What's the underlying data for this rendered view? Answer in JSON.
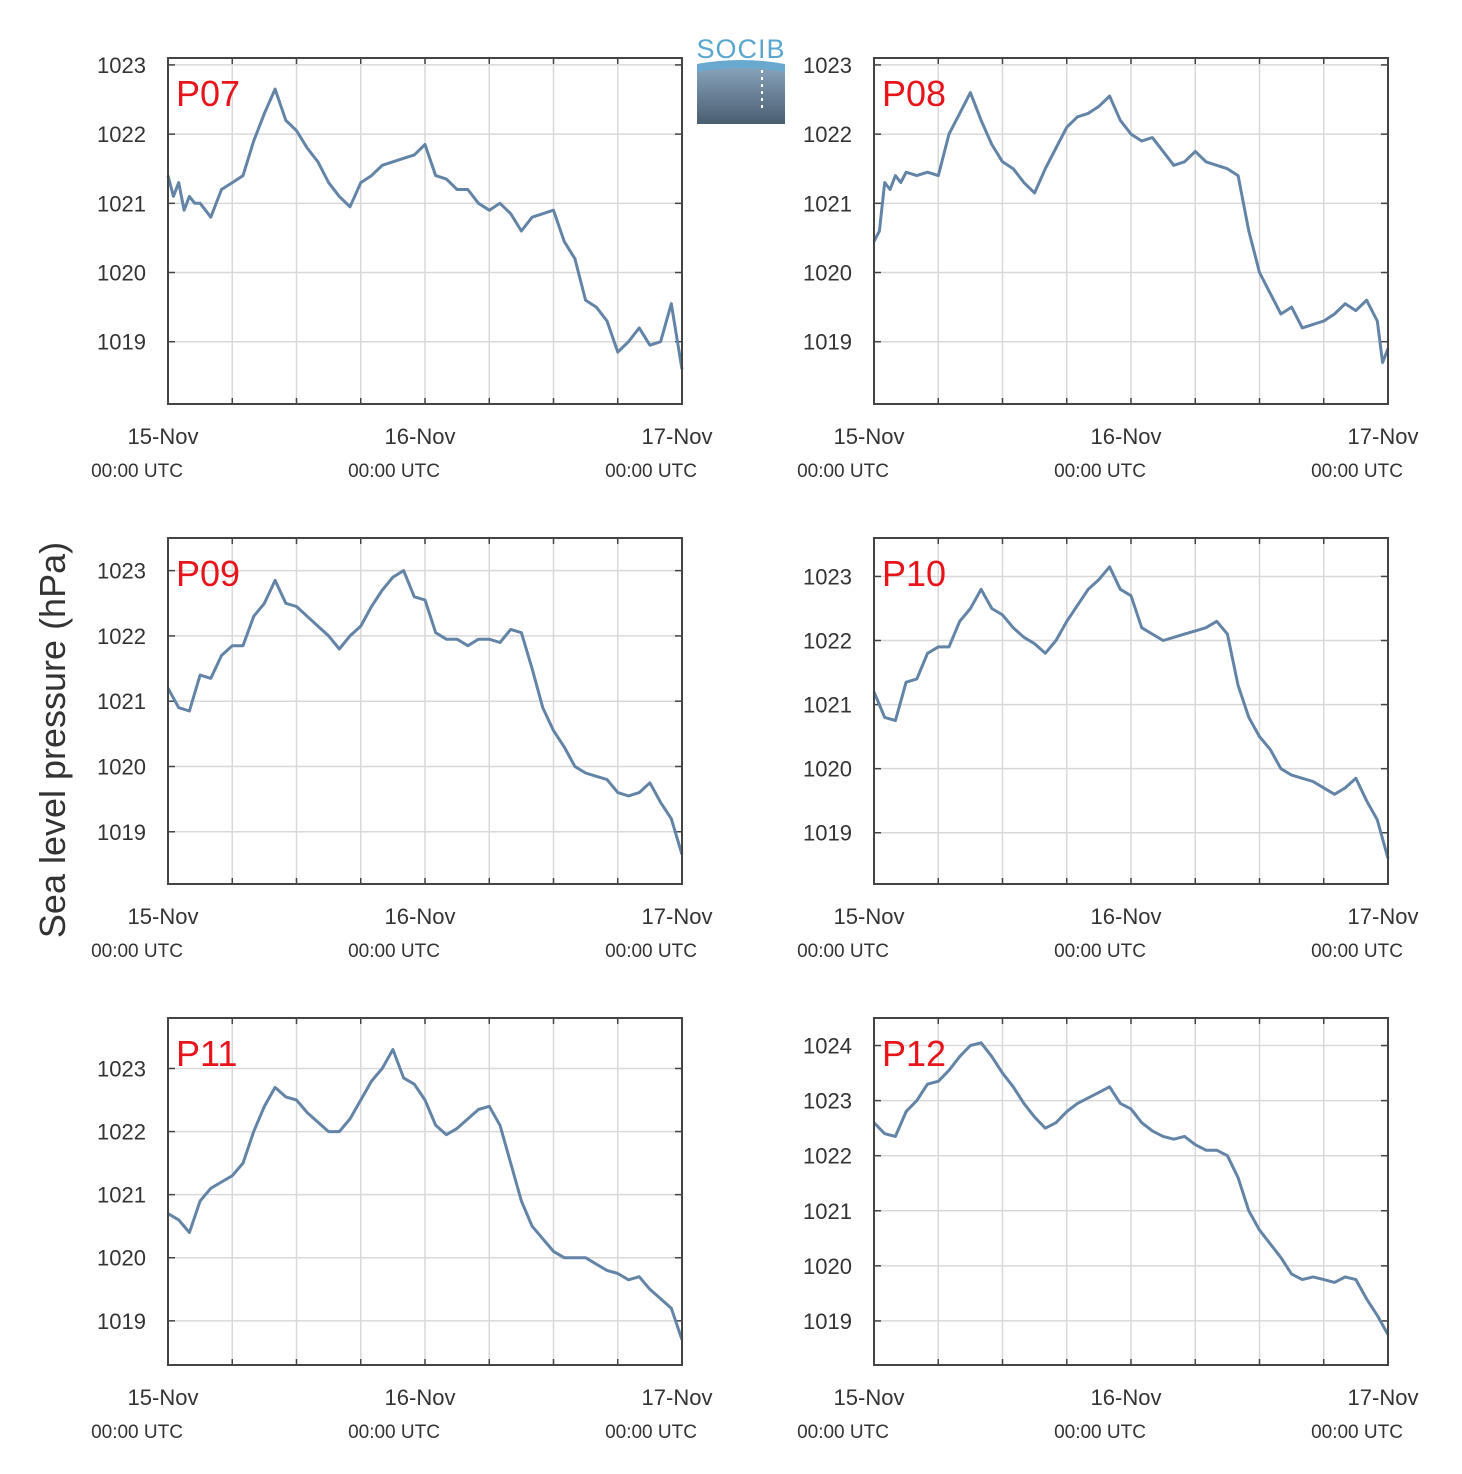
{
  "figure": {
    "ylabel": "Sea level pressure (hPa)",
    "logo_text": "SOCIB",
    "colors": {
      "line": "#6384a6",
      "station_label": "#e8141c",
      "grid": "#d9d9d9",
      "axes": "#444444"
    }
  },
  "chart_data": [
    {
      "type": "line",
      "station": "P07",
      "x_ticks": [
        {
          "date": "15-Nov",
          "time": "00:00 UTC"
        },
        {
          "date": "16-Nov",
          "time": "00:00 UTC"
        },
        {
          "date": "17-Nov",
          "time": "00:00 UTC"
        }
      ],
      "xlim_hours": [
        0,
        48
      ],
      "x_unit": "hours since 15-Nov 00:00 UTC",
      "ylim": [
        1018.1,
        1023.1
      ],
      "yticks": [
        1019,
        1020,
        1021,
        1022,
        1023
      ],
      "grid": true,
      "series": [
        {
          "x": [
            0,
            0.5,
            1,
            1.5,
            2,
            2.5,
            3,
            3.5,
            4,
            5,
            6,
            7,
            8,
            9,
            10,
            11,
            12,
            13,
            14,
            15,
            16,
            17,
            18,
            19,
            20,
            21,
            22,
            23,
            24,
            25,
            26,
            27,
            28,
            29,
            30,
            31,
            32,
            33,
            34,
            35,
            36,
            37,
            38,
            39,
            40,
            41,
            42,
            43,
            44,
            45,
            46,
            47,
            48
          ],
          "y": [
            1021.4,
            1021.1,
            1021.3,
            1020.9,
            1021.1,
            1021.0,
            1021.0,
            1020.9,
            1020.8,
            1021.2,
            1021.3,
            1021.4,
            1021.9,
            1022.3,
            1022.65,
            1022.2,
            1022.05,
            1021.8,
            1021.6,
            1021.3,
            1021.1,
            1020.95,
            1021.3,
            1021.4,
            1021.55,
            1021.6,
            1021.65,
            1021.7,
            1021.85,
            1021.4,
            1021.35,
            1021.2,
            1021.2,
            1021.0,
            1020.9,
            1021.0,
            1020.85,
            1020.6,
            1020.8,
            1020.85,
            1020.9,
            1020.45,
            1020.2,
            1019.6,
            1019.5,
            1019.3,
            1018.85,
            1019.0,
            1019.2,
            1018.95,
            1019.0,
            1019.55,
            1018.6
          ]
        }
      ]
    },
    {
      "type": "line",
      "station": "P08",
      "x_ticks": [
        {
          "date": "15-Nov",
          "time": "00:00 UTC"
        },
        {
          "date": "16-Nov",
          "time": "00:00 UTC"
        },
        {
          "date": "17-Nov",
          "time": "00:00 UTC"
        }
      ],
      "xlim_hours": [
        0,
        48
      ],
      "x_unit": "hours since 15-Nov 00:00 UTC",
      "ylim": [
        1018.1,
        1023.1
      ],
      "yticks": [
        1019,
        1020,
        1021,
        1022,
        1023
      ],
      "grid": true,
      "series": [
        {
          "x": [
            0,
            0.5,
            1,
            1.5,
            2,
            2.5,
            3,
            4,
            5,
            6,
            7,
            8,
            9,
            10,
            11,
            12,
            13,
            14,
            15,
            16,
            17,
            18,
            19,
            20,
            21,
            22,
            23,
            24,
            25,
            26,
            27,
            28,
            29,
            30,
            31,
            32,
            33,
            34,
            35,
            36,
            37,
            38,
            39,
            40,
            41,
            42,
            43,
            44,
            45,
            46,
            47,
            47.5,
            48
          ],
          "y": [
            1020.45,
            1020.6,
            1021.3,
            1021.2,
            1021.4,
            1021.3,
            1021.45,
            1021.4,
            1021.45,
            1021.4,
            1022.0,
            1022.3,
            1022.6,
            1022.2,
            1021.85,
            1021.6,
            1021.5,
            1021.3,
            1021.15,
            1021.5,
            1021.8,
            1022.1,
            1022.25,
            1022.3,
            1022.4,
            1022.55,
            1022.2,
            1022.0,
            1021.9,
            1021.95,
            1021.75,
            1021.55,
            1021.6,
            1021.75,
            1021.6,
            1021.55,
            1021.5,
            1021.4,
            1020.6,
            1020.0,
            1019.7,
            1019.4,
            1019.5,
            1019.2,
            1019.25,
            1019.3,
            1019.4,
            1019.55,
            1019.45,
            1019.6,
            1019.3,
            1018.7,
            1018.9
          ]
        }
      ]
    },
    {
      "type": "line",
      "station": "P09",
      "x_ticks": [
        {
          "date": "15-Nov",
          "time": "00:00 UTC"
        },
        {
          "date": "16-Nov",
          "time": "00:00 UTC"
        },
        {
          "date": "17-Nov",
          "time": "00:00 UTC"
        }
      ],
      "xlim_hours": [
        0,
        48
      ],
      "x_unit": "hours since 15-Nov 00:00 UTC",
      "ylim": [
        1018.2,
        1023.5
      ],
      "yticks": [
        1019,
        1020,
        1021,
        1022,
        1023
      ],
      "grid": true,
      "series": [
        {
          "x": [
            0,
            1,
            2,
            3,
            4,
            5,
            6,
            7,
            8,
            9,
            10,
            11,
            12,
            13,
            14,
            15,
            16,
            17,
            18,
            19,
            20,
            21,
            22,
            23,
            24,
            25,
            26,
            27,
            28,
            29,
            30,
            31,
            32,
            33,
            34,
            35,
            36,
            37,
            38,
            39,
            40,
            41,
            42,
            43,
            44,
            45,
            46,
            47,
            48
          ],
          "y": [
            1021.2,
            1020.9,
            1020.85,
            1021.4,
            1021.35,
            1021.7,
            1021.85,
            1021.85,
            1022.3,
            1022.5,
            1022.85,
            1022.5,
            1022.45,
            1022.3,
            1022.15,
            1022.0,
            1021.8,
            1022.0,
            1022.15,
            1022.45,
            1022.7,
            1022.9,
            1023.0,
            1022.6,
            1022.55,
            1022.05,
            1021.95,
            1021.95,
            1021.85,
            1021.95,
            1021.95,
            1021.9,
            1022.1,
            1022.05,
            1021.5,
            1020.9,
            1020.55,
            1020.3,
            1020.0,
            1019.9,
            1019.85,
            1019.8,
            1019.6,
            1019.55,
            1019.6,
            1019.75,
            1019.45,
            1019.2,
            1018.65
          ]
        }
      ]
    },
    {
      "type": "line",
      "station": "P10",
      "x_ticks": [
        {
          "date": "15-Nov",
          "time": "00:00 UTC"
        },
        {
          "date": "16-Nov",
          "time": "00:00 UTC"
        },
        {
          "date": "17-Nov",
          "time": "00:00 UTC"
        }
      ],
      "xlim_hours": [
        0,
        48
      ],
      "x_unit": "hours since 15-Nov 00:00 UTC",
      "ylim": [
        1018.2,
        1023.6
      ],
      "yticks": [
        1019,
        1020,
        1021,
        1022,
        1023
      ],
      "grid": true,
      "series": [
        {
          "x": [
            0,
            1,
            2,
            3,
            4,
            5,
            6,
            7,
            8,
            9,
            10,
            11,
            12,
            13,
            14,
            15,
            16,
            17,
            18,
            19,
            20,
            21,
            22,
            23,
            24,
            25,
            26,
            27,
            28,
            29,
            30,
            31,
            32,
            33,
            34,
            35,
            36,
            37,
            38,
            39,
            40,
            41,
            42,
            43,
            44,
            45,
            46,
            47,
            48
          ],
          "y": [
            1021.2,
            1020.8,
            1020.75,
            1021.35,
            1021.4,
            1021.8,
            1021.9,
            1021.9,
            1022.3,
            1022.5,
            1022.8,
            1022.5,
            1022.4,
            1022.2,
            1022.05,
            1021.95,
            1021.8,
            1022.0,
            1022.3,
            1022.55,
            1022.8,
            1022.95,
            1023.15,
            1022.8,
            1022.7,
            1022.2,
            1022.1,
            1022.0,
            1022.05,
            1022.1,
            1022.15,
            1022.2,
            1022.3,
            1022.1,
            1021.3,
            1020.8,
            1020.5,
            1020.3,
            1020.0,
            1019.9,
            1019.85,
            1019.8,
            1019.7,
            1019.6,
            1019.7,
            1019.85,
            1019.5,
            1019.2,
            1018.6
          ]
        }
      ]
    },
    {
      "type": "line",
      "station": "P11",
      "x_ticks": [
        {
          "date": "15-Nov",
          "time": "00:00 UTC"
        },
        {
          "date": "16-Nov",
          "time": "00:00 UTC"
        },
        {
          "date": "17-Nov",
          "time": "00:00 UTC"
        }
      ],
      "xlim_hours": [
        0,
        48
      ],
      "x_unit": "hours since 15-Nov 00:00 UTC",
      "ylim": [
        1018.3,
        1023.8
      ],
      "yticks": [
        1019,
        1020,
        1021,
        1022,
        1023
      ],
      "grid": true,
      "series": [
        {
          "x": [
            0,
            1,
            2,
            3,
            4,
            5,
            6,
            7,
            8,
            9,
            10,
            11,
            12,
            13,
            14,
            15,
            16,
            17,
            18,
            19,
            20,
            21,
            22,
            23,
            24,
            25,
            26,
            27,
            28,
            29,
            30,
            31,
            32,
            33,
            34,
            35,
            36,
            37,
            38,
            39,
            40,
            41,
            42,
            43,
            44,
            45,
            46,
            47,
            48
          ],
          "y": [
            1020.7,
            1020.6,
            1020.4,
            1020.9,
            1021.1,
            1021.2,
            1021.3,
            1021.5,
            1022.0,
            1022.4,
            1022.7,
            1022.55,
            1022.5,
            1022.3,
            1022.15,
            1022.0,
            1022.0,
            1022.2,
            1022.5,
            1022.8,
            1023.0,
            1023.3,
            1022.85,
            1022.75,
            1022.5,
            1022.1,
            1021.95,
            1022.05,
            1022.2,
            1022.35,
            1022.4,
            1022.1,
            1021.5,
            1020.9,
            1020.5,
            1020.3,
            1020.1,
            1020.0,
            1020.0,
            1020.0,
            1019.9,
            1019.8,
            1019.75,
            1019.65,
            1019.7,
            1019.5,
            1019.35,
            1019.2,
            1018.7
          ]
        }
      ]
    },
    {
      "type": "line",
      "station": "P12",
      "x_ticks": [
        {
          "date": "15-Nov",
          "time": "00:00 UTC"
        },
        {
          "date": "16-Nov",
          "time": "00:00 UTC"
        },
        {
          "date": "17-Nov",
          "time": "00:00 UTC"
        }
      ],
      "xlim_hours": [
        0,
        48
      ],
      "x_unit": "hours since 15-Nov 00:00 UTC",
      "ylim": [
        1018.2,
        1024.5
      ],
      "yticks": [
        1019,
        1020,
        1021,
        1022,
        1023,
        1024
      ],
      "grid": true,
      "series": [
        {
          "x": [
            0,
            1,
            2,
            3,
            4,
            5,
            6,
            7,
            8,
            9,
            10,
            11,
            12,
            13,
            14,
            15,
            16,
            17,
            18,
            19,
            20,
            21,
            22,
            23,
            24,
            25,
            26,
            27,
            28,
            29,
            30,
            31,
            32,
            33,
            34,
            35,
            36,
            37,
            38,
            39,
            40,
            41,
            42,
            43,
            44,
            45,
            46,
            47,
            48
          ],
          "y": [
            1022.6,
            1022.4,
            1022.35,
            1022.8,
            1023.0,
            1023.3,
            1023.35,
            1023.55,
            1023.8,
            1024.0,
            1024.05,
            1023.8,
            1023.5,
            1023.25,
            1022.95,
            1022.7,
            1022.5,
            1022.6,
            1022.8,
            1022.95,
            1023.05,
            1023.15,
            1023.25,
            1022.95,
            1022.85,
            1022.6,
            1022.45,
            1022.35,
            1022.3,
            1022.35,
            1022.2,
            1022.1,
            1022.1,
            1022.0,
            1021.6,
            1021.0,
            1020.65,
            1020.4,
            1020.15,
            1019.85,
            1019.75,
            1019.8,
            1019.75,
            1019.7,
            1019.8,
            1019.75,
            1019.4,
            1019.1,
            1018.75
          ]
        }
      ]
    }
  ]
}
